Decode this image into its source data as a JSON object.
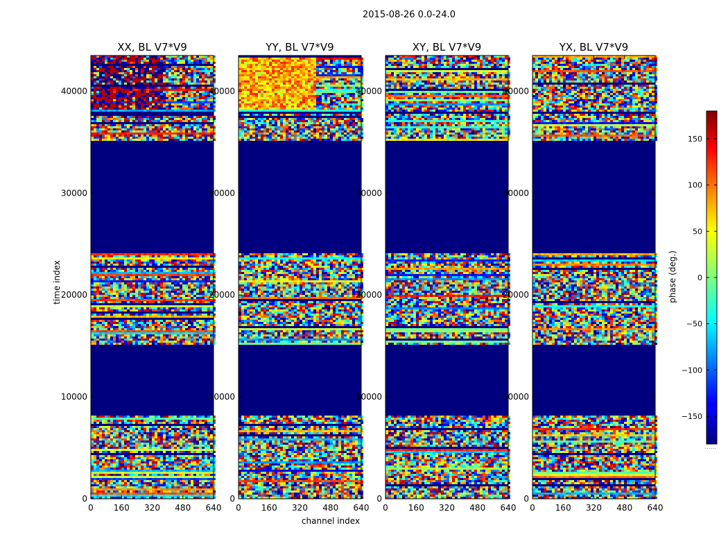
{
  "chart_data": {
    "type": "heatmap",
    "title": "2015-08-26 0.0-24.0",
    "xlabel": "channel index",
    "ylabel": "time index",
    "xlim": [
      0,
      640
    ],
    "ylim": [
      0,
      43500
    ],
    "xticks": [
      "0",
      "160",
      "320",
      "480",
      "640"
    ],
    "yticks": [
      "0",
      "10000",
      "20000",
      "30000",
      "40000"
    ],
    "colorbar": {
      "label": "phase (deg.)",
      "range": [
        -180,
        180
      ],
      "ticks": [
        "150",
        "100",
        "50",
        "0",
        "−50",
        "−100",
        "−150"
      ],
      "colormap": "jet"
    },
    "panels": [
      {
        "title": "XX, BL V7*V9",
        "show_ylabels": true
      },
      {
        "title": "YY, BL V7*V9",
        "show_ylabels": true
      },
      {
        "title": "XY, BL V7*V9",
        "show_ylabels": true
      },
      {
        "title": "YX, BL V7*V9",
        "show_ylabels": true
      }
    ],
    "masked_time_ranges": [
      [
        8200,
        15200
      ],
      [
        24200,
        35200
      ],
      [
        37800,
        38000
      ]
    ]
  }
}
